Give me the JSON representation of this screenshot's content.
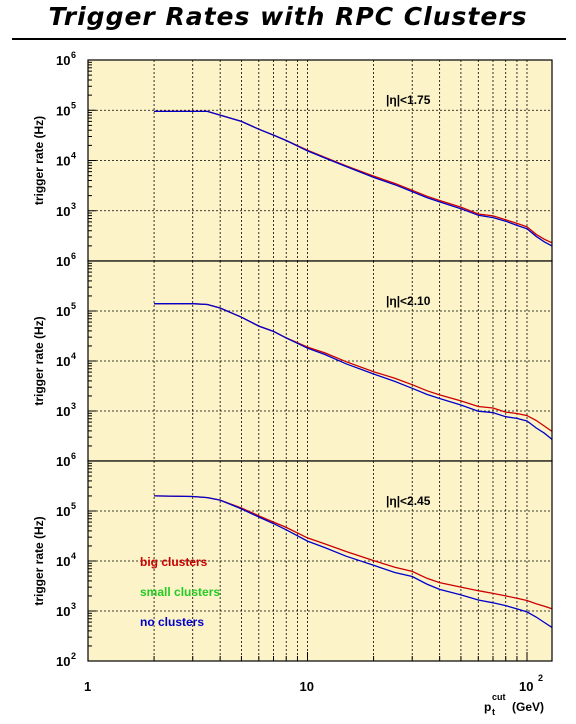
{
  "title": "Trigger Rates with RPC Clusters",
  "colors": {
    "background": "#fdf3c8",
    "big": "#cc0000",
    "small": "#22cc22",
    "none": "#0000cc"
  },
  "chart_data": {
    "type": "line",
    "title": "Trigger Rates with RPC Clusters",
    "xlabel": {
      "main": "p",
      "sub": "t",
      "sup": "cut",
      "unit": "(GeV)"
    },
    "ylabel": "trigger rate (Hz)",
    "xscale": "log",
    "yscale": "log",
    "xlim": [
      1,
      130
    ],
    "grid": true,
    "x_ticks": [
      {
        "value": 1,
        "base": "1",
        "exp": ""
      },
      {
        "value": 10,
        "base": "10",
        "exp": ""
      },
      {
        "value": 100,
        "base": "10",
        "exp": "2"
      }
    ],
    "legend": {
      "position": "lower-left",
      "entries": [
        {
          "label": "big clusters",
          "color": "#cc0000"
        },
        {
          "label": "small clusters",
          "color": "#22cc22"
        },
        {
          "label": "no clusters",
          "color": "#0000cc"
        }
      ]
    },
    "panels": [
      {
        "label": "|η|<1.75",
        "ylim": [
          100,
          1000000
        ],
        "y_ticks": [
          {
            "value": 1000,
            "exp": "3"
          },
          {
            "value": 10000,
            "exp": "4"
          },
          {
            "value": 100000,
            "exp": "5"
          },
          {
            "value": 1000000,
            "exp": "6"
          }
        ],
        "series": [
          {
            "key": "big",
            "x": [
              2,
              3,
              3.5,
              4,
              5,
              6,
              7,
              8,
              10,
              12,
              15,
              20,
              25,
              30,
              35,
              40,
              50,
              60,
              70,
              80,
              90,
              100,
              110,
              120,
              130
            ],
            "y": [
              95000,
              95000,
              95000,
              80000,
              60000,
              42000,
              32000,
              25000,
              16000,
              11500,
              7800,
              4900,
              3500,
              2550,
              1950,
              1600,
              1180,
              860,
              790,
              660,
              560,
              480,
              340,
              270,
              230
            ]
          },
          {
            "key": "none",
            "x": [
              2,
              3,
              3.5,
              4,
              5,
              6,
              7,
              8,
              10,
              12,
              15,
              20,
              25,
              30,
              35,
              40,
              50,
              60,
              70,
              80,
              90,
              100,
              110,
              120,
              130
            ],
            "y": [
              95000,
              95000,
              95000,
              80000,
              60000,
              42000,
              32000,
              25000,
              15500,
              11200,
              7600,
              4600,
              3300,
              2400,
              1830,
              1500,
              1100,
              810,
              730,
              620,
              510,
              440,
              310,
              240,
              200
            ]
          }
        ]
      },
      {
        "label": "|η|<2.10",
        "ylim": [
          100,
          1000000
        ],
        "y_ticks": [
          {
            "value": 1000,
            "exp": "3"
          },
          {
            "value": 10000,
            "exp": "4"
          },
          {
            "value": 100000,
            "exp": "5"
          },
          {
            "value": 1000000,
            "exp": "6"
          }
        ],
        "series": [
          {
            "key": "big",
            "x": [
              2,
              3,
              3.5,
              4,
              5,
              6,
              7,
              8,
              10,
              12,
              15,
              20,
              25,
              30,
              35,
              40,
              50,
              60,
              70,
              80,
              90,
              100,
              110,
              120,
              130
            ],
            "y": [
              140000,
              140000,
              135000,
              115000,
              75000,
              50000,
              39000,
              29000,
              19000,
              14500,
              9700,
              6100,
              4500,
              3350,
              2550,
              2100,
              1590,
              1230,
              1150,
              950,
              890,
              810,
              650,
              500,
              390
            ]
          },
          {
            "key": "none",
            "x": [
              2,
              3,
              3.5,
              4,
              5,
              6,
              7,
              8,
              10,
              12,
              15,
              20,
              25,
              30,
              35,
              40,
              50,
              60,
              70,
              80,
              90,
              100,
              110,
              120,
              130
            ],
            "y": [
              140000,
              140000,
              135000,
              115000,
              75000,
              50000,
              39000,
              29000,
              18000,
              13500,
              8800,
              5500,
              3900,
              2850,
              2150,
              1780,
              1320,
              990,
              930,
              770,
              710,
              630,
              460,
              360,
              270
            ]
          }
        ]
      },
      {
        "label": "|η|<2.45",
        "ylim": [
          100,
          1000000
        ],
        "y_ticks": [
          {
            "value": 100,
            "exp": "2"
          },
          {
            "value": 1000,
            "exp": "3"
          },
          {
            "value": 10000,
            "exp": "4"
          },
          {
            "value": 100000,
            "exp": "5"
          },
          {
            "value": 1000000,
            "exp": "6"
          }
        ],
        "series": [
          {
            "key": "big",
            "x": [
              2,
              3,
              3.5,
              4,
              5,
              6,
              7,
              8,
              10,
              12,
              15,
              20,
              25,
              30,
              35,
              40,
              50,
              60,
              70,
              80,
              90,
              100,
              110,
              120,
              130
            ],
            "y": [
              200000,
              195000,
              185000,
              165000,
              115000,
              80000,
              60000,
              47000,
              29000,
              22000,
              15500,
              10200,
              7500,
              6200,
              4500,
              3700,
              3000,
              2550,
              2250,
              2000,
              1800,
              1620,
              1400,
              1240,
              1110
            ]
          },
          {
            "key": "none",
            "x": [
              2,
              3,
              3.5,
              4,
              5,
              6,
              7,
              8,
              10,
              12,
              15,
              20,
              25,
              30,
              35,
              40,
              50,
              60,
              70,
              80,
              90,
              100,
              110,
              120,
              130
            ],
            "y": [
              200000,
              195000,
              185000,
              165000,
              110000,
              76000,
              56000,
              42000,
              25000,
              18500,
              12500,
              8200,
              5900,
              4900,
              3450,
              2700,
              2100,
              1660,
              1460,
              1280,
              1100,
              960,
              760,
              590,
              470
            ]
          }
        ]
      }
    ]
  }
}
